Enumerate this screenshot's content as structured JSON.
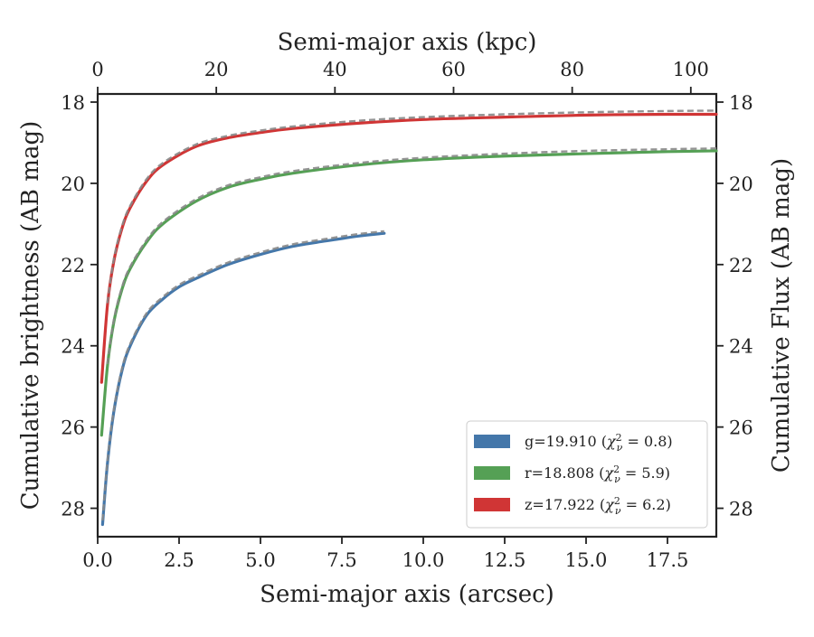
{
  "chart_data": {
    "type": "line",
    "xlabel": "Semi-major axis (arcsec)",
    "ylabel": "Cumulative brightness (AB mag)",
    "x2label": "Semi-major axis (kpc)",
    "y2label": "Cumulative Flux (AB mag)",
    "xlim": [
      0,
      19.0
    ],
    "ylim": [
      28.7,
      17.8
    ],
    "x2lim": [
      0,
      104.3
    ],
    "y_inverted": true,
    "xticks": [
      "0.0",
      "2.5",
      "5.0",
      "7.5",
      "10.0",
      "12.5",
      "15.0",
      "17.5"
    ],
    "xtick_values": [
      0,
      2.5,
      5,
      7.5,
      10,
      12.5,
      15,
      17.5
    ],
    "x2ticks": [
      "0",
      "20",
      "40",
      "60",
      "80",
      "100"
    ],
    "x2tick_values": [
      0,
      20,
      40,
      60,
      80,
      100
    ],
    "yticks": [
      "18",
      "20",
      "22",
      "24",
      "26",
      "28"
    ],
    "ytick_values": [
      18,
      20,
      22,
      24,
      26,
      28
    ],
    "legend_position": "lower-right",
    "legend": [
      {
        "label": "g=19.910 (",
        "chi_text": "χ",
        "sup": "2",
        "sub": "ν",
        "tail": " = 0.8)",
        "color": "#4477aa"
      },
      {
        "label": "r=18.808 (",
        "chi_text": "χ",
        "sup": "2",
        "sub": "ν",
        "tail": " = 5.9)",
        "color": "#55a055"
      },
      {
        "label": "z=17.922 (",
        "chi_text": "χ",
        "sup": "2",
        "sub": "ν",
        "tail": " = 6.2)",
        "color": "#d03535"
      }
    ],
    "series": [
      {
        "name": "g",
        "color": "#4477aa",
        "x": [
          0.15,
          0.3,
          0.5,
          0.75,
          1.0,
          1.5,
          2.0,
          2.5,
          3.0,
          4.0,
          5.0,
          6.0,
          7.0,
          8.0,
          8.8
        ],
        "y": [
          28.4,
          26.9,
          25.6,
          24.6,
          24.0,
          23.25,
          22.85,
          22.55,
          22.35,
          22.0,
          21.75,
          21.55,
          21.42,
          21.3,
          21.23
        ]
      },
      {
        "name": "r",
        "color": "#55a055",
        "x": [
          0.12,
          0.3,
          0.5,
          0.75,
          1.0,
          1.5,
          2.0,
          3.0,
          4.0,
          5.0,
          6.0,
          8.0,
          10.0,
          12.5,
          15.0,
          17.5,
          19.0
        ],
        "y": [
          26.2,
          24.5,
          23.4,
          22.6,
          22.1,
          21.45,
          21.0,
          20.45,
          20.1,
          19.9,
          19.75,
          19.55,
          19.42,
          19.33,
          19.27,
          19.22,
          19.2
        ]
      },
      {
        "name": "z",
        "color": "#d03535",
        "x": [
          0.12,
          0.3,
          0.5,
          0.75,
          1.0,
          1.5,
          2.0,
          3.0,
          4.0,
          5.0,
          6.0,
          8.0,
          10.0,
          12.5,
          15.0,
          17.5,
          19.0
        ],
        "y": [
          24.9,
          23.0,
          21.9,
          21.1,
          20.6,
          19.95,
          19.55,
          19.1,
          18.88,
          18.75,
          18.65,
          18.52,
          18.43,
          18.37,
          18.32,
          18.3,
          18.3
        ]
      }
    ],
    "model_series": [
      {
        "name": "g-model",
        "color": "#888888",
        "x": [
          0.15,
          0.3,
          0.5,
          0.75,
          1.0,
          1.5,
          2.0,
          2.5,
          3.0,
          4.0,
          5.0,
          6.0,
          7.0,
          8.0,
          8.8
        ],
        "y": [
          28.3,
          26.85,
          25.55,
          24.55,
          23.95,
          23.2,
          22.8,
          22.5,
          22.3,
          21.95,
          21.7,
          21.5,
          21.37,
          21.25,
          21.18
        ]
      },
      {
        "name": "r-model",
        "color": "#888888",
        "x": [
          0.3,
          0.5,
          0.75,
          1.0,
          1.5,
          2.0,
          3.0,
          4.0,
          5.0,
          6.0,
          8.0,
          10.0,
          12.5,
          15.0,
          17.5,
          19.0
        ],
        "y": [
          24.45,
          23.35,
          22.55,
          22.05,
          21.4,
          20.95,
          20.4,
          20.05,
          19.85,
          19.7,
          19.5,
          19.37,
          19.27,
          19.2,
          19.16,
          19.14
        ]
      },
      {
        "name": "z-model",
        "color": "#888888",
        "x": [
          0.3,
          0.5,
          0.75,
          1.0,
          1.5,
          2.0,
          3.0,
          4.0,
          5.0,
          6.0,
          8.0,
          10.0,
          12.5,
          15.0,
          17.5,
          19.0
        ],
        "y": [
          22.95,
          21.85,
          21.05,
          20.55,
          19.9,
          19.5,
          19.05,
          18.83,
          18.7,
          18.6,
          18.46,
          18.37,
          18.3,
          18.25,
          18.22,
          18.21
        ]
      }
    ]
  }
}
